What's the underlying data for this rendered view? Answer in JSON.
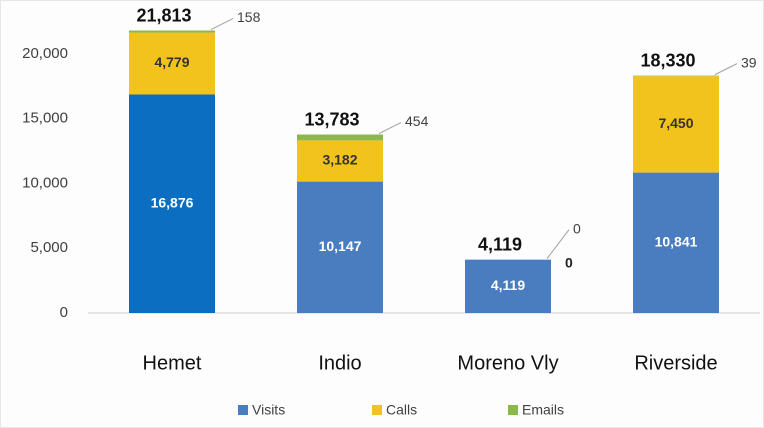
{
  "chart_data": {
    "type": "stacked_bar",
    "categories": [
      "Hemet",
      "Indio",
      "Moreno Vly",
      "Riverside"
    ],
    "series": [
      {
        "name": "Visits",
        "color": "#4a7dbf",
        "colors": [
          "#0b6ec0",
          "#4a7dbf",
          "#4a7dbf",
          "#4a7dbf"
        ],
        "values": [
          16876,
          10147,
          4119,
          10841
        ],
        "value_labels": [
          "16,876",
          "10,147",
          "4,119",
          "10,841"
        ]
      },
      {
        "name": "Calls",
        "color": "#f2c31c",
        "values": [
          4779,
          3182,
          0,
          7450
        ],
        "value_labels": [
          "4,779",
          "3,182",
          "0",
          "7,450"
        ]
      },
      {
        "name": "Emails",
        "color": "#8cb650",
        "values": [
          158,
          454,
          0,
          39
        ]
      }
    ],
    "totals": {
      "values": [
        21813,
        13783,
        4119,
        18330
      ],
      "value_labels": [
        "21,813",
        "13,783",
        "4,119",
        "18,330"
      ]
    },
    "ylim": [
      0,
      25000
    ],
    "yticks": [
      0,
      {
        "value": 5000,
        "label": "5,000"
      },
      {
        "value": 10000,
        "label": "10,000"
      },
      {
        "value": 15000,
        "label": "15,000"
      },
      {
        "value": 20000,
        "label": "20,000"
      }
    ],
    "grid": false,
    "legend": "bottom"
  }
}
